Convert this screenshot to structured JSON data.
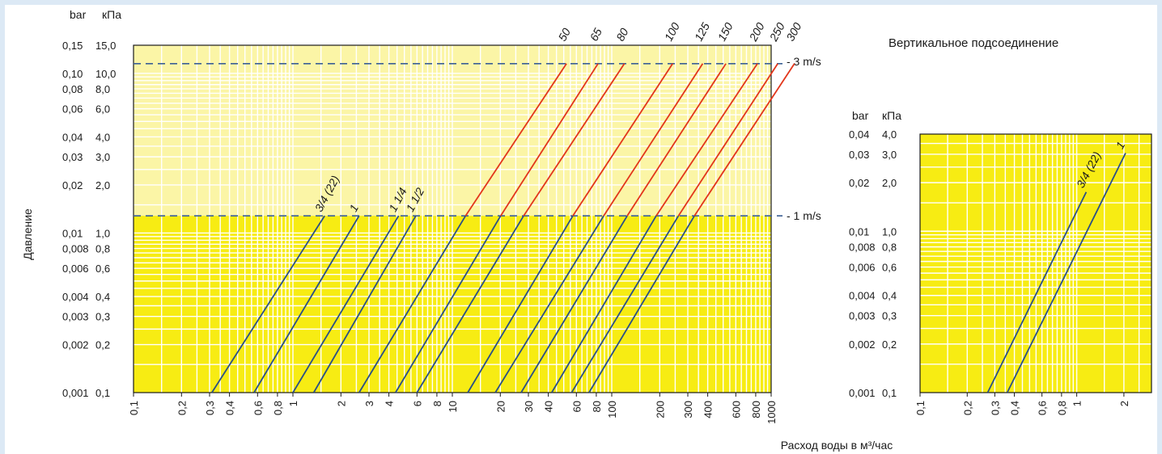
{
  "colors": {
    "plot_bg": "#f7ec13",
    "plot_bg_light": "#fbf5a6",
    "grid": "#ffffff",
    "blue_line": "#2a4f86",
    "red_line": "#e2361b",
    "dash": "#3a5f95",
    "page_bg": "#dce9f5"
  },
  "labels": {
    "y_axis_title": "Давление",
    "x_axis_title": "Расход воды в м³/час",
    "unit_bar": "bar",
    "unit_kpa": "кПа",
    "unit_bar_2": "bar",
    "unit_kpa_2": "кПа",
    "velocity_high": "- 3 m/s",
    "velocity_low": "- 1 m/s",
    "right_title": "Вертикальное подсоединение"
  },
  "chart_data": [
    {
      "type": "line",
      "title": "",
      "xlabel": "Расход воды в м³/час",
      "ylabel": "Давление",
      "x_scale": "log",
      "y_scale": "log",
      "xlim": [
        0.1,
        1000
      ],
      "ylim_kpa": [
        0.1,
        15.0
      ],
      "grid": true,
      "y_ticks": [
        {
          "bar": "0,15",
          "kpa": "15,0",
          "value": 15.0
        },
        {
          "bar": "0,10",
          "kpa": "10,0",
          "value": 10.0
        },
        {
          "bar": "0,08",
          "kpa": "8,0",
          "value": 8.0
        },
        {
          "bar": "0,06",
          "kpa": "6,0",
          "value": 6.0
        },
        {
          "bar": "0,04",
          "kpa": "4,0",
          "value": 4.0
        },
        {
          "bar": "0,03",
          "kpa": "3,0",
          "value": 3.0
        },
        {
          "bar": "0,02",
          "kpa": "2,0",
          "value": 2.0
        },
        {
          "bar": "0,01",
          "kpa": "1,0",
          "value": 1.0
        },
        {
          "bar": "0,008",
          "kpa": "0,8",
          "value": 0.8
        },
        {
          "bar": "0,006",
          "kpa": "0,6",
          "value": 0.6
        },
        {
          "bar": "0,004",
          "kpa": "0,4",
          "value": 0.4
        },
        {
          "bar": "0,003",
          "kpa": "0,3",
          "value": 0.3
        },
        {
          "bar": "0,002",
          "kpa": "0,2",
          "value": 0.2
        },
        {
          "bar": "0,001",
          "kpa": "0,1",
          "value": 0.1
        }
      ],
      "x_ticks": [
        {
          "label": "0,1",
          "value": 0.1
        },
        {
          "label": "0,2",
          "value": 0.2
        },
        {
          "label": "0,3",
          "value": 0.3
        },
        {
          "label": "0,4",
          "value": 0.4
        },
        {
          "label": "0,6",
          "value": 0.6
        },
        {
          "label": "0,8",
          "value": 0.8
        },
        {
          "label": "1",
          "value": 1
        },
        {
          "label": "2",
          "value": 2
        },
        {
          "label": "3",
          "value": 3
        },
        {
          "label": "4",
          "value": 4
        },
        {
          "label": "6",
          "value": 6
        },
        {
          "label": "8",
          "value": 8
        },
        {
          "label": "10",
          "value": 10
        },
        {
          "label": "20",
          "value": 20
        },
        {
          "label": "30",
          "value": 30
        },
        {
          "label": "40",
          "value": 40
        },
        {
          "label": "60",
          "value": 60
        },
        {
          "label": "80",
          "value": 80
        },
        {
          "label": "100",
          "value": 100
        },
        {
          "label": "200",
          "value": 200
        },
        {
          "label": "300",
          "value": 300
        },
        {
          "label": "400",
          "value": 400
        },
        {
          "label": "600",
          "value": 600
        },
        {
          "label": "800",
          "value": 800
        },
        {
          "label": "1000",
          "value": 1000
        }
      ],
      "velocity_lines": [
        {
          "label": "- 3 m/s",
          "kpa": 11.5
        },
        {
          "label": "- 1 m/s",
          "kpa": 1.28
        }
      ],
      "series": [
        {
          "name": "3/4 (22)",
          "x": [
            0.31,
            1.58
          ],
          "y": [
            0.1,
            1.28
          ],
          "color": "blue"
        },
        {
          "name": "1",
          "x": [
            0.57,
            2.6
          ],
          "y": [
            0.1,
            1.28
          ],
          "color": "blue"
        },
        {
          "name": "1 1/4",
          "x": [
            1.0,
            4.6
          ],
          "y": [
            0.1,
            1.28
          ],
          "color": "blue"
        },
        {
          "name": "1 1/2",
          "x": [
            1.35,
            5.9
          ],
          "y": [
            0.1,
            1.28
          ],
          "color": "blue"
        },
        {
          "name": "50",
          "x": [
            2.6,
            12.1,
            52
          ],
          "y": [
            0.1,
            1.28,
            11.5
          ]
        },
        {
          "name": "65",
          "x": [
            4.4,
            20.1,
            82
          ],
          "y": [
            0.1,
            1.28,
            11.5
          ]
        },
        {
          "name": "80",
          "x": [
            6.0,
            28,
            120
          ],
          "y": [
            0.1,
            1.28,
            11.5
          ]
        },
        {
          "name": "100",
          "x": [
            12.5,
            57,
            241
          ],
          "y": [
            0.1,
            1.28,
            11.5
          ]
        },
        {
          "name": "125",
          "x": [
            18.6,
            89,
            372
          ],
          "y": [
            0.1,
            1.28,
            11.5
          ]
        },
        {
          "name": "150",
          "x": [
            27,
            125,
            520
          ],
          "y": [
            0.1,
            1.28,
            11.5
          ]
        },
        {
          "name": "200",
          "x": [
            42,
            190,
            820
          ],
          "y": [
            0.1,
            1.28,
            11.5
          ]
        },
        {
          "name": "250",
          "x": [
            56,
            262,
            1100
          ],
          "y": [
            0.1,
            1.28,
            11.5
          ]
        },
        {
          "name": "300",
          "x": [
            72,
            330,
            1400
          ],
          "y": [
            0.1,
            1.28,
            11.5
          ]
        }
      ]
    },
    {
      "type": "line",
      "title": "Вертикальное подсоединение",
      "xlabel": "",
      "ylabel": "",
      "x_scale": "log",
      "y_scale": "log",
      "xlim": [
        0.1,
        3.0
      ],
      "ylim_kpa": [
        0.1,
        4.0
      ],
      "grid": true,
      "y_ticks": [
        {
          "bar": "0,04",
          "kpa": "4,0",
          "value": 4.0
        },
        {
          "bar": "0,03",
          "kpa": "3,0",
          "value": 3.0
        },
        {
          "bar": "0,02",
          "kpa": "2,0",
          "value": 2.0
        },
        {
          "bar": "0,01",
          "kpa": "1,0",
          "value": 1.0
        },
        {
          "bar": "0,008",
          "kpa": "0,8",
          "value": 0.8
        },
        {
          "bar": "0,006",
          "kpa": "0,6",
          "value": 0.6
        },
        {
          "bar": "0,004",
          "kpa": "0,4",
          "value": 0.4
        },
        {
          "bar": "0,003",
          "kpa": "0,3",
          "value": 0.3
        },
        {
          "bar": "0,002",
          "kpa": "0,2",
          "value": 0.2
        },
        {
          "bar": "0,001",
          "kpa": "0,1",
          "value": 0.1
        }
      ],
      "x_ticks": [
        {
          "label": "0,1",
          "value": 0.1
        },
        {
          "label": "0,2",
          "value": 0.2
        },
        {
          "label": "0,3",
          "value": 0.3
        },
        {
          "label": "0,4",
          "value": 0.4
        },
        {
          "label": "0,6",
          "value": 0.6
        },
        {
          "label": "0,8",
          "value": 0.8
        },
        {
          "label": "1",
          "value": 1
        },
        {
          "label": "2",
          "value": 2
        }
      ],
      "series": [
        {
          "name": "3/4 (22)",
          "x": [
            0.27,
            1.15
          ],
          "y": [
            0.1,
            1.75
          ],
          "color": "blue"
        },
        {
          "name": "1",
          "x": [
            0.36,
            2.05
          ],
          "y": [
            0.1,
            3.05
          ],
          "color": "blue"
        }
      ]
    }
  ]
}
